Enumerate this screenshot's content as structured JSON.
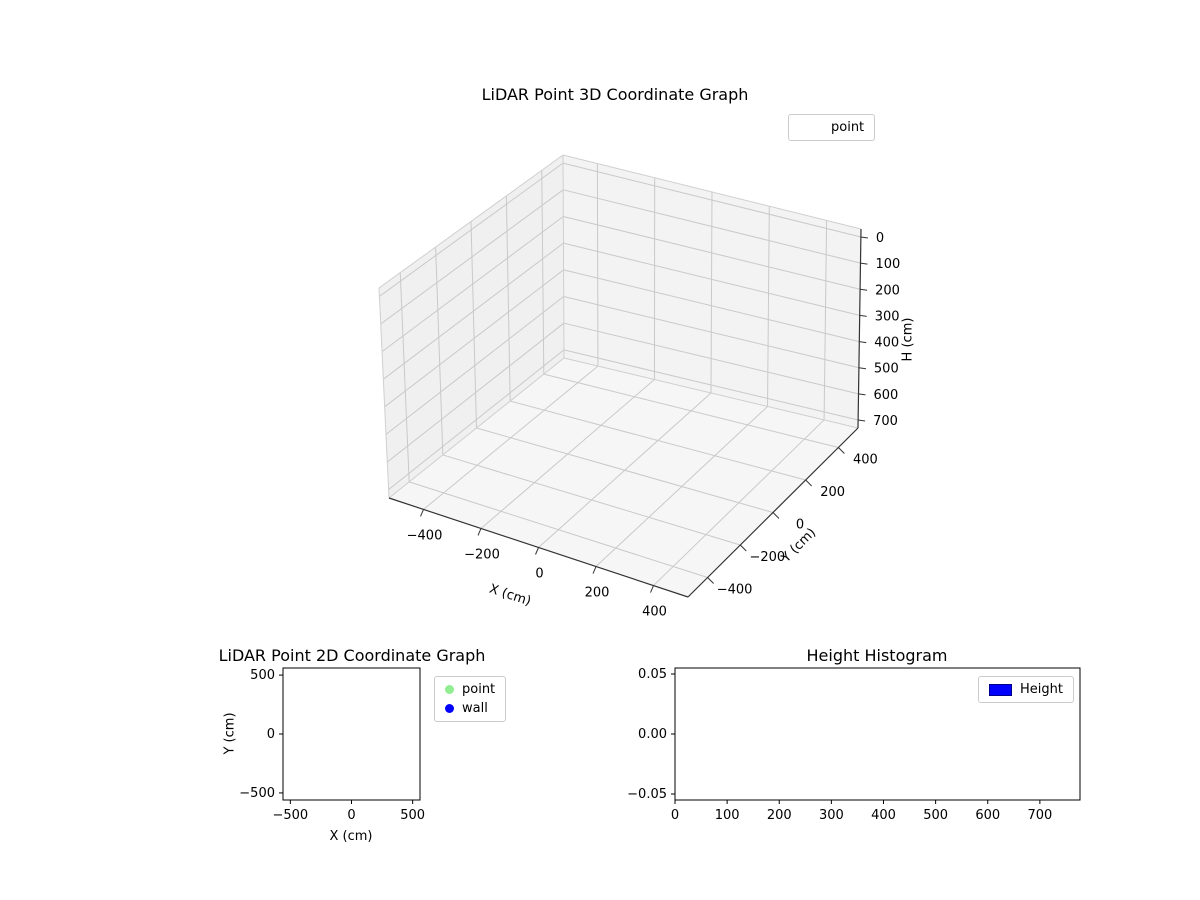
{
  "figure": {
    "background": "#ffffff",
    "text_color": "#000000",
    "pane_color_left": "#f0f0f0",
    "pane_color_right": "#f3f3f3",
    "pane_color_floor": "#f6f6f6",
    "grid_color": "#c9c9c9",
    "spine_color": "#333333"
  },
  "chart_data": [
    {
      "id": "plot3d",
      "type": "scatter",
      "projection": "3d",
      "title": "LiDAR Point 3D Coordinate Graph",
      "xlabel": "X (cm)",
      "ylabel": "Y (cm)",
      "zlabel": "H (cm)",
      "xticks": [
        -400,
        -200,
        0,
        200,
        400
      ],
      "xtick_labels": [
        "−400",
        "−200",
        "0",
        "200",
        "400"
      ],
      "yticks": [
        -400,
        -200,
        0,
        200,
        400
      ],
      "ytick_labels": [
        "−400",
        "−200",
        "0",
        "200",
        "400"
      ],
      "zticks": [
        0,
        100,
        200,
        300,
        400,
        500,
        600,
        700
      ],
      "ztick_labels": [
        "0",
        "100",
        "200",
        "300",
        "400",
        "500",
        "600",
        "700"
      ],
      "xlim": [
        -520,
        520
      ],
      "ylim": [
        -520,
        520
      ],
      "zlim": [
        0,
        700
      ],
      "zaxis_inverted": true,
      "grid": true,
      "legend": [
        {
          "label": "point",
          "color": ""
        }
      ],
      "legend_position": "upper right",
      "points": []
    },
    {
      "id": "plot2d",
      "type": "scatter",
      "title": "LiDAR Point 2D Coordinate Graph",
      "xlabel": "X (cm)",
      "ylabel": "Y (cm)",
      "xticks": [
        -500,
        0,
        500
      ],
      "xtick_labels": [
        "−500",
        "0",
        "500"
      ],
      "yticks": [
        500,
        0,
        -500
      ],
      "ytick_labels": [
        "500",
        "0",
        "−500"
      ],
      "xlim": [
        -560,
        560
      ],
      "ylim": [
        -560,
        560
      ],
      "grid": false,
      "legend": [
        {
          "label": "point",
          "color": "#90ee90",
          "marker": "circle"
        },
        {
          "label": "wall",
          "color": "#0000ff",
          "marker": "circle"
        }
      ],
      "legend_position": "upper right outside",
      "points": []
    },
    {
      "id": "histogram",
      "type": "bar",
      "title": "Height Histogram",
      "xlabel": "",
      "ylabel": "",
      "xticks": [
        0,
        100,
        200,
        300,
        400,
        500,
        600,
        700
      ],
      "xtick_labels": [
        "0",
        "100",
        "200",
        "300",
        "400",
        "500",
        "600",
        "700"
      ],
      "yticks": [
        0.05,
        0.0,
        -0.05
      ],
      "ytick_labels": [
        "0.05",
        "0.00",
        "−0.05"
      ],
      "xlim": [
        0,
        777
      ],
      "ylim": [
        -0.055,
        0.055
      ],
      "grid": false,
      "legend": [
        {
          "label": "Height",
          "color": "#0000ff",
          "marker": "rect"
        }
      ],
      "legend_position": "upper right",
      "values": []
    }
  ]
}
